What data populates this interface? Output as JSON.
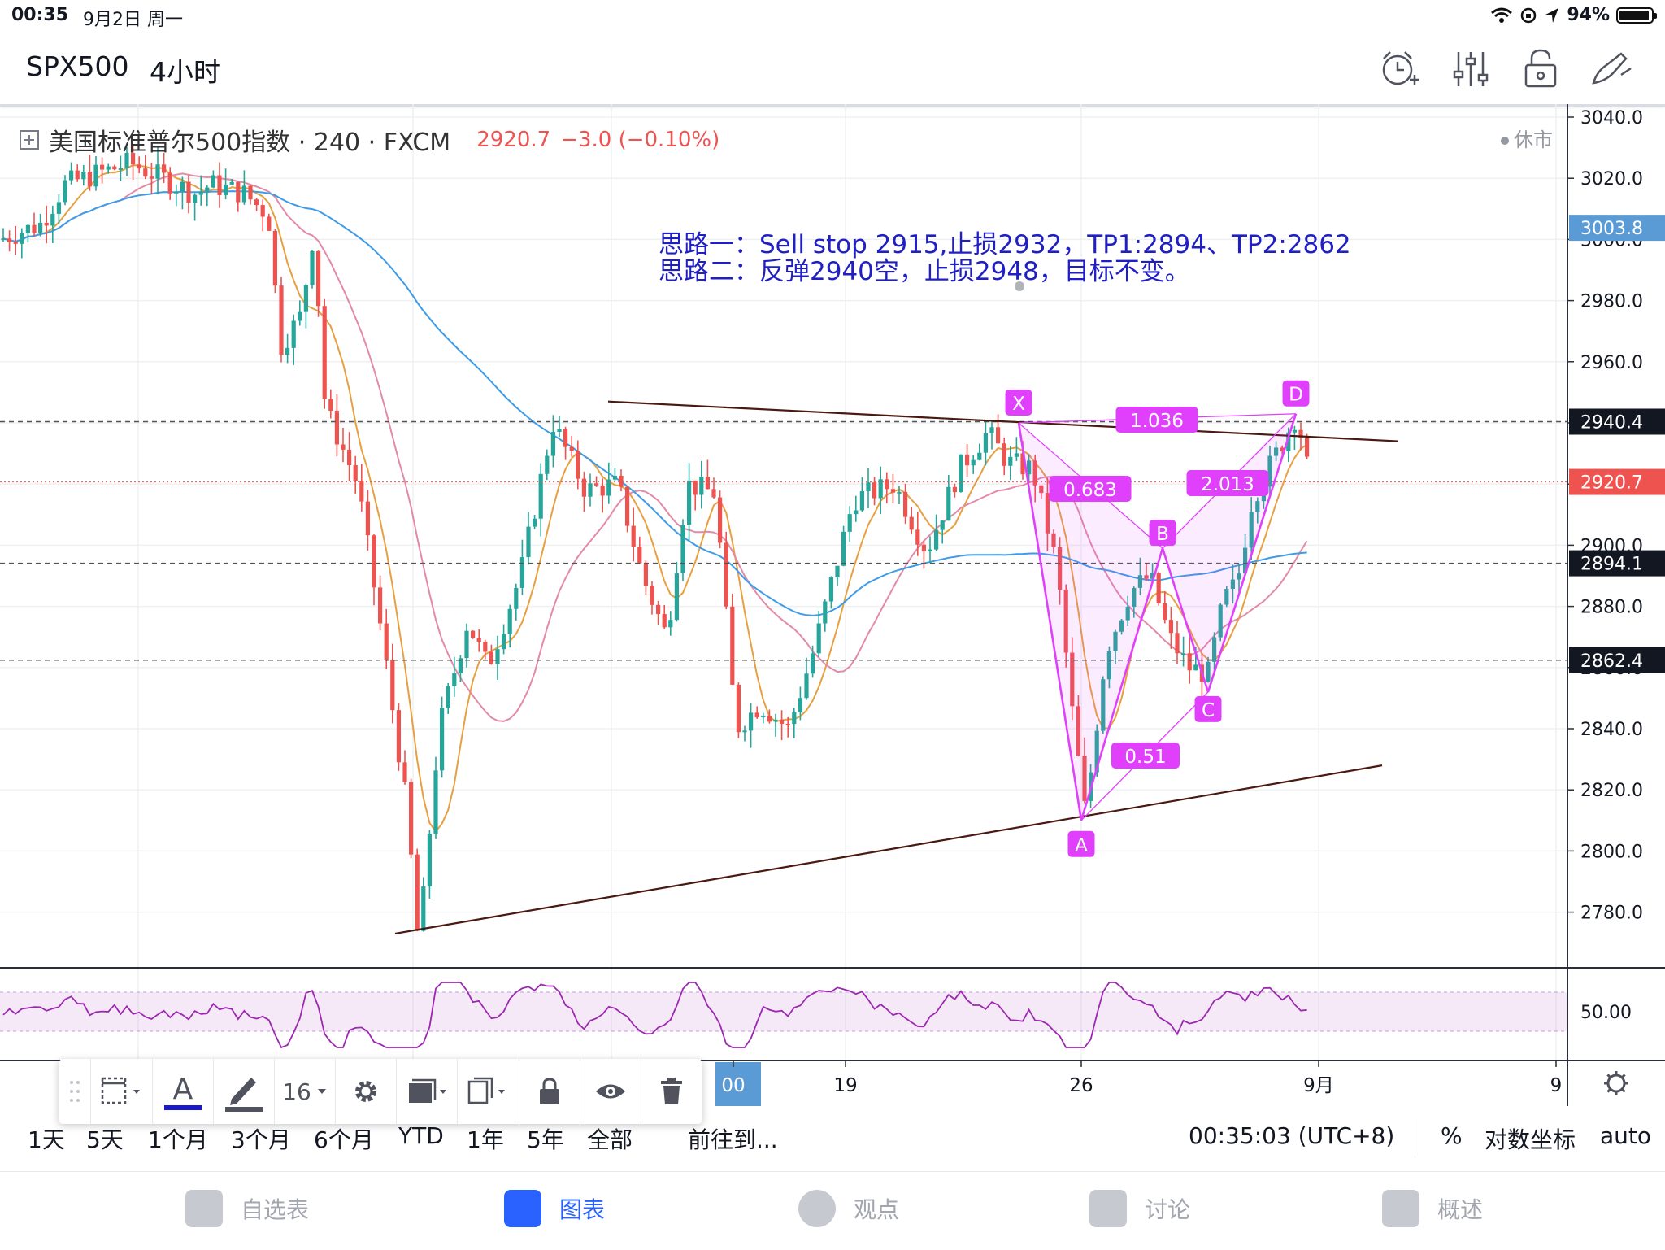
{
  "status_bar": {
    "time": "00:35",
    "date": "9月2日 周一",
    "battery": "94%",
    "battery_level": 0.94
  },
  "header": {
    "symbol": "SPX500",
    "timeframe": "4小时",
    "icons": [
      "alarm-add-icon",
      "indicators-icon",
      "lock-icon",
      "drawing-pen-icon"
    ]
  },
  "legend": {
    "name": "美国标准普尔500指数 · 240 · FXCM",
    "price": "2920.7",
    "change": "−3.0 (−0.10%)",
    "market_status": "休市"
  },
  "chart_data": {
    "type": "candlestick",
    "y_axis": {
      "range": [
        2767,
        3043
      ],
      "ticks": [
        "3040.0",
        "3020.0",
        "3000.0",
        "2980.0",
        "2960.0",
        "2940.0",
        "2920.0",
        "2900.0",
        "2880.0",
        "2860.0",
        "2840.0",
        "2820.0",
        "2800.0",
        "2780.0"
      ]
    },
    "price_labels": [
      {
        "text": "3003.8",
        "value": 3003.8,
        "color": "#5b9bd5"
      },
      {
        "text": "2940.4",
        "value": 2940.4,
        "color": "#131722"
      },
      {
        "text": "2920.7",
        "value": 2920.7,
        "color": "#ef5350"
      },
      {
        "text": "2894.1",
        "value": 2894.1,
        "color": "#131722"
      },
      {
        "text": "2862.4",
        "value": 2862.4,
        "color": "#131722"
      }
    ],
    "horizontal_levels": [
      2940.4,
      2894.1,
      2862.4
    ],
    "x_axis_labels": [
      {
        "text": "00",
        "highlighted": true
      },
      {
        "text": "19"
      },
      {
        "text": "26"
      },
      {
        "text": "9月"
      },
      {
        "text": "9"
      }
    ],
    "annotation_text": [
      "思路一：Sell stop 2915,止损2932，TP1:2894、TP2:2862",
      "思路二：反弹2940空，止损2948，目标不变。"
    ],
    "harmonic_pattern": {
      "points": [
        {
          "label": "X",
          "value": 2940
        },
        {
          "label": "A",
          "value": 2810
        },
        {
          "label": "B",
          "value": 2899
        },
        {
          "label": "C",
          "value": 2852
        },
        {
          "label": "D",
          "value": 2943
        }
      ],
      "ratios": [
        "1.036",
        "0.683",
        "2.013",
        "0.51"
      ]
    },
    "trendlines": [
      {
        "name": "upper-resistance",
        "from": 2947,
        "to": 2934
      },
      {
        "name": "lower-support",
        "from": 2773,
        "to": 2828
      }
    ],
    "rsi": {
      "level_label": "50.00"
    }
  },
  "drawing_toolbar": {
    "font_size": "16"
  },
  "range_bar": {
    "ranges": [
      "1天",
      "5天",
      "1个月",
      "3个月",
      "6个月",
      "YTD",
      "1年",
      "5年",
      "全部"
    ],
    "goto": "前往到...",
    "clock": "00:35:03 (UTC+8)",
    "percent": "%",
    "log_scale": "对数坐标",
    "auto": "auto"
  },
  "tabs": [
    {
      "label": "自选表",
      "icon": "watchlist-icon",
      "active": false
    },
    {
      "label": "图表",
      "icon": "chart-icon",
      "active": true
    },
    {
      "label": "观点",
      "icon": "ideas-icon",
      "active": false
    },
    {
      "label": "讨论",
      "icon": "chat-icon",
      "active": false
    },
    {
      "label": "概述",
      "icon": "overview-icon",
      "active": false
    }
  ]
}
